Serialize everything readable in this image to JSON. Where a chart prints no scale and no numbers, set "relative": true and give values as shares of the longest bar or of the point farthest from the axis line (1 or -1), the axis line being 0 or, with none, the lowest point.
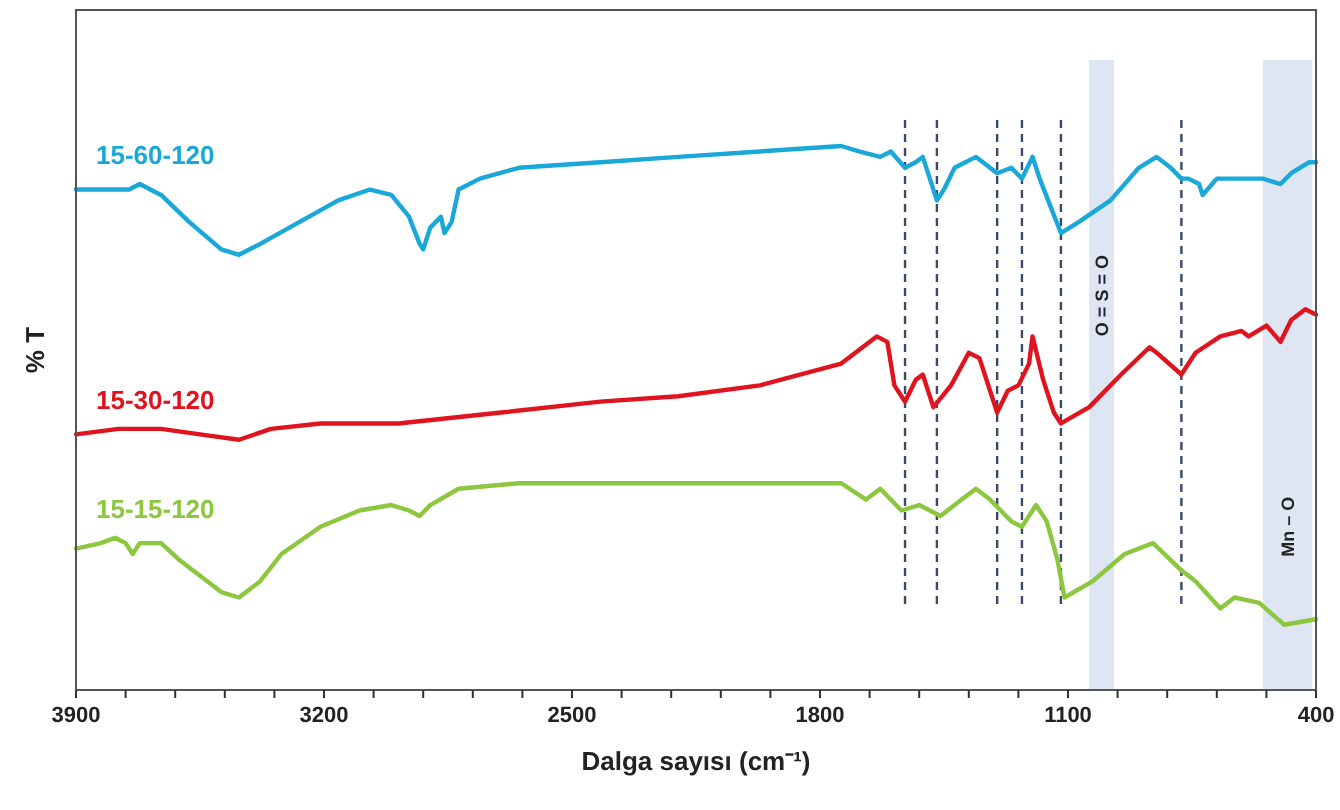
{
  "chart_data": {
    "type": "line",
    "relative": true,
    "xlabel": "Dalga sayısı (cm⁻¹)",
    "ylabel": "% T",
    "xlim": [
      3900,
      400
    ],
    "xticks": [
      3900,
      {
        "value": 3760,
        "label": null
      },
      {
        "value": 3620,
        "label": null
      },
      {
        "value": 3480,
        "label": null
      },
      {
        "value": 3340,
        "label": null
      },
      3200,
      {
        "value": 3060,
        "label": null
      },
      {
        "value": 2920,
        "label": null
      },
      {
        "value": 2780,
        "label": null
      },
      {
        "value": 2640,
        "label": null
      },
      2500,
      {
        "value": 2360,
        "label": null
      },
      {
        "value": 2220,
        "label": null
      },
      {
        "value": 2080,
        "label": null
      },
      {
        "value": 1940,
        "label": null
      },
      1800,
      {
        "value": 1660,
        "label": null
      },
      {
        "value": 1520,
        "label": null
      },
      {
        "value": 1380,
        "label": null
      },
      {
        "value": 1240,
        "label": null
      },
      1100,
      {
        "value": 960,
        "label": null
      },
      {
        "value": 820,
        "label": null
      },
      {
        "value": 680,
        "label": null
      },
      {
        "value": 540,
        "label": null
      },
      400
    ],
    "grid": false,
    "legend": false,
    "marker": "none",
    "line_style": "solid",
    "series": [
      {
        "name": "15-60-120",
        "color": "#1aa7d9",
        "x": [
          3900,
          3800,
          3750,
          3720,
          3660,
          3580,
          3490,
          3440,
          3380,
          3270,
          3160,
          3070,
          3010,
          2960,
          2930,
          2920,
          2900,
          2870,
          2860,
          2840,
          2820,
          2760,
          2650,
          2420,
          2200,
          1970,
          1740,
          1690,
          1630,
          1600,
          1560,
          1530,
          1510,
          1470,
          1450,
          1420,
          1360,
          1340,
          1300,
          1260,
          1230,
          1200,
          1180,
          1150,
          1120,
          1070,
          980,
          900,
          850,
          810,
          780,
          760,
          730,
          720,
          680,
          610,
          570,
          550,
          500,
          470,
          420,
          400
        ],
        "values": [
          0.92,
          0.92,
          0.92,
          0.93,
          0.91,
          0.86,
          0.81,
          0.8,
          0.82,
          0.86,
          0.9,
          0.92,
          0.91,
          0.87,
          0.82,
          0.81,
          0.85,
          0.87,
          0.84,
          0.86,
          0.92,
          0.94,
          0.96,
          0.97,
          0.98,
          0.99,
          1,
          0.99,
          0.98,
          0.99,
          0.96,
          0.97,
          0.98,
          0.9,
          0.92,
          0.96,
          0.98,
          0.97,
          0.95,
          0.96,
          0.94,
          0.98,
          0.94,
          0.89,
          0.84,
          0.86,
          0.9,
          0.96,
          0.98,
          0.96,
          0.94,
          0.94,
          0.93,
          0.91,
          0.94,
          0.94,
          0.94,
          0.94,
          0.93,
          0.95,
          0.97,
          0.97
        ]
      },
      {
        "name": "15-30-120",
        "color": "#e0141e",
        "x": [
          3900,
          3780,
          3660,
          3550,
          3440,
          3350,
          3210,
          2990,
          2700,
          2420,
          2200,
          1970,
          1740,
          1640,
          1610,
          1590,
          1560,
          1530,
          1510,
          1480,
          1430,
          1380,
          1350,
          1320,
          1300,
          1270,
          1240,
          1210,
          1200,
          1170,
          1140,
          1120,
          1040,
          950,
          870,
          850,
          780,
          740,
          670,
          610,
          590,
          540,
          500,
          470,
          430,
          400
        ],
        "values": [
          0.47,
          0.48,
          0.48,
          0.47,
          0.46,
          0.48,
          0.49,
          0.49,
          0.51,
          0.53,
          0.54,
          0.56,
          0.6,
          0.65,
          0.64,
          0.56,
          0.53,
          0.57,
          0.58,
          0.52,
          0.56,
          0.62,
          0.61,
          0.55,
          0.51,
          0.55,
          0.56,
          0.6,
          0.65,
          0.57,
          0.51,
          0.49,
          0.52,
          0.58,
          0.63,
          0.62,
          0.58,
          0.62,
          0.65,
          0.66,
          0.65,
          0.67,
          0.64,
          0.68,
          0.7,
          0.69
        ]
      },
      {
        "name": "15-15-120",
        "color": "#8dc63f",
        "x": [
          3900,
          3830,
          3790,
          3760,
          3740,
          3720,
          3660,
          3610,
          3550,
          3490,
          3440,
          3380,
          3320,
          3210,
          3100,
          3010,
          2960,
          2930,
          2900,
          2820,
          2650,
          2420,
          2200,
          1970,
          1740,
          1670,
          1630,
          1570,
          1520,
          1460,
          1400,
          1360,
          1320,
          1260,
          1230,
          1190,
          1160,
          1130,
          1110,
          1030,
          940,
          860,
          780,
          740,
          670,
          630,
          560,
          490,
          400
        ],
        "values": [
          0.26,
          0.27,
          0.28,
          0.27,
          0.25,
          0.27,
          0.27,
          0.24,
          0.21,
          0.18,
          0.17,
          0.2,
          0.25,
          0.3,
          0.33,
          0.34,
          0.33,
          0.32,
          0.34,
          0.37,
          0.38,
          0.38,
          0.38,
          0.38,
          0.38,
          0.35,
          0.37,
          0.33,
          0.34,
          0.32,
          0.35,
          0.37,
          0.35,
          0.31,
          0.3,
          0.34,
          0.31,
          0.24,
          0.17,
          0.2,
          0.25,
          0.27,
          0.22,
          0.2,
          0.15,
          0.17,
          0.16,
          0.12,
          0.13
        ]
      }
    ],
    "ref_lines": [
      {
        "axis": "x",
        "value": 1560,
        "color": "#3a4a6a",
        "line_style": "dashed"
      },
      {
        "axis": "x",
        "value": 1470,
        "color": "#3a4a6a",
        "line_style": "dashed"
      },
      {
        "axis": "x",
        "value": 1300,
        "color": "#3a4a6a",
        "line_style": "dashed"
      },
      {
        "axis": "x",
        "value": 1230,
        "color": "#3a4a6a",
        "line_style": "dashed"
      },
      {
        "axis": "x",
        "value": 1120,
        "color": "#3a4a6a",
        "line_style": "dashed"
      },
      {
        "axis": "x",
        "value": 780,
        "color": "#3a4a6a",
        "line_style": "dashed"
      }
    ],
    "bands": [
      {
        "axis": "x",
        "from": 1040,
        "to": 970,
        "label": "O = S = O",
        "color": "#dde6f2"
      },
      {
        "axis": "x",
        "from": 550,
        "to": 410,
        "label": "Mn – O",
        "color": "#dde6f2"
      }
    ]
  }
}
